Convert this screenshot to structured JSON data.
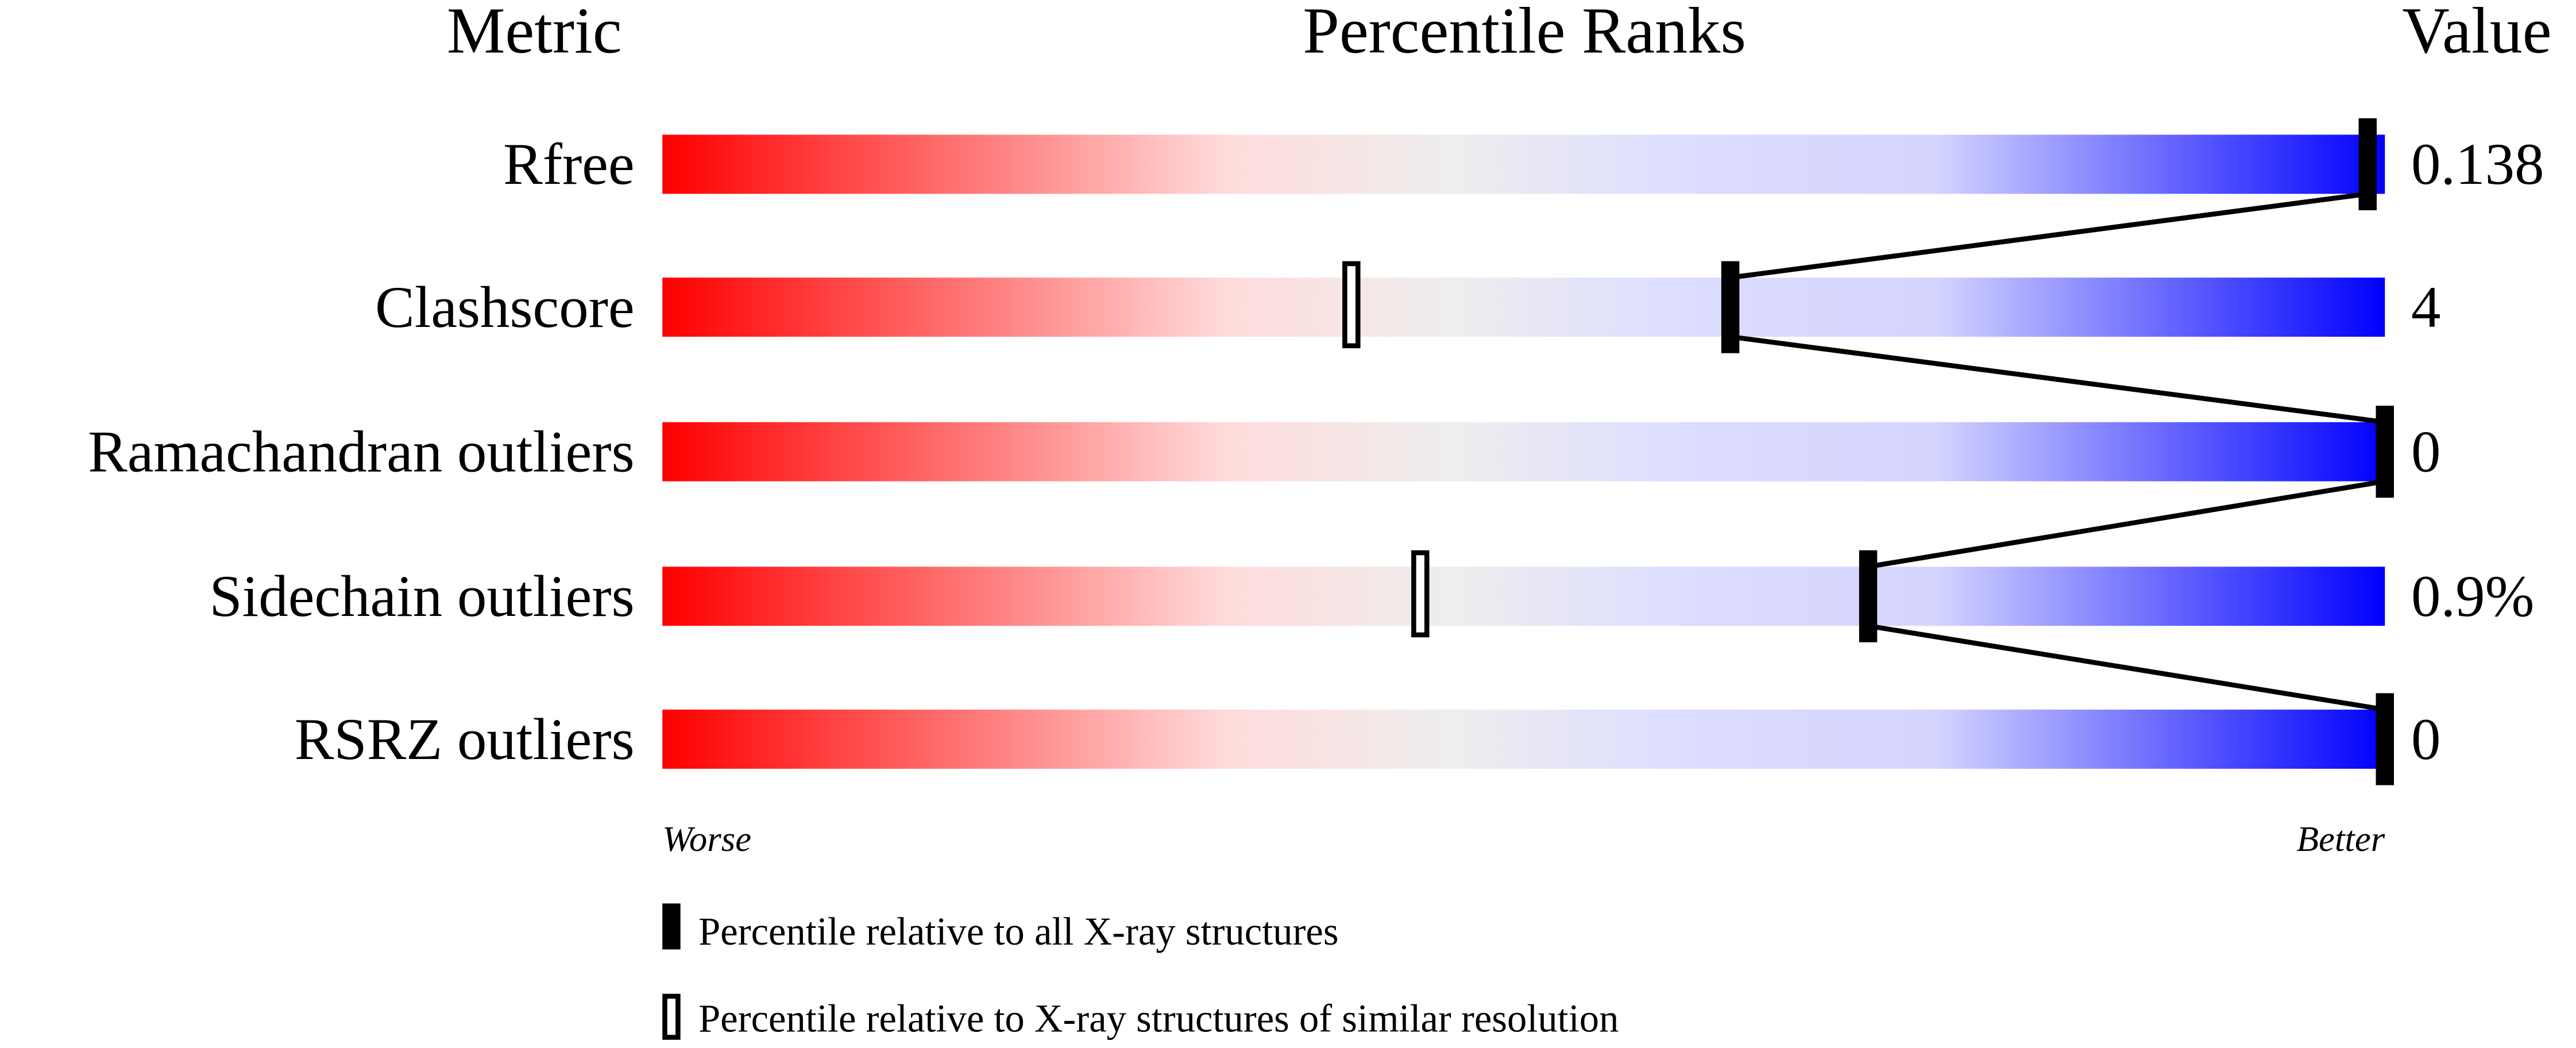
{
  "chart_data": {
    "type": "bar",
    "headers": {
      "metric": "Metric",
      "ranks": "Percentile Ranks",
      "value": "Value"
    },
    "xlim": [
      0,
      100
    ],
    "axis_labels": {
      "left": "Worse",
      "right": "Better"
    },
    "rows": [
      {
        "metric": "Rfree",
        "value": "0.138",
        "percentile_all": 99,
        "percentile_similar": null
      },
      {
        "metric": "Clashscore",
        "value": "4",
        "percentile_all": 62,
        "percentile_similar": 40
      },
      {
        "metric": "Ramachandran outliers",
        "value": "0",
        "percentile_all": 100,
        "percentile_similar": null
      },
      {
        "metric": "Sidechain outliers",
        "value": "0.9%",
        "percentile_all": 70,
        "percentile_similar": 44
      },
      {
        "metric": "RSRZ outliers",
        "value": "0",
        "percentile_all": 100,
        "percentile_similar": null
      }
    ],
    "legend": {
      "all": "Percentile relative to all X-ray structures",
      "similar": "Percentile relative to X-ray structures of similar resolution"
    },
    "gradient_colors": {
      "worse": "#ff0000",
      "middle": "#eeeeee",
      "better": "#0000ff"
    }
  }
}
